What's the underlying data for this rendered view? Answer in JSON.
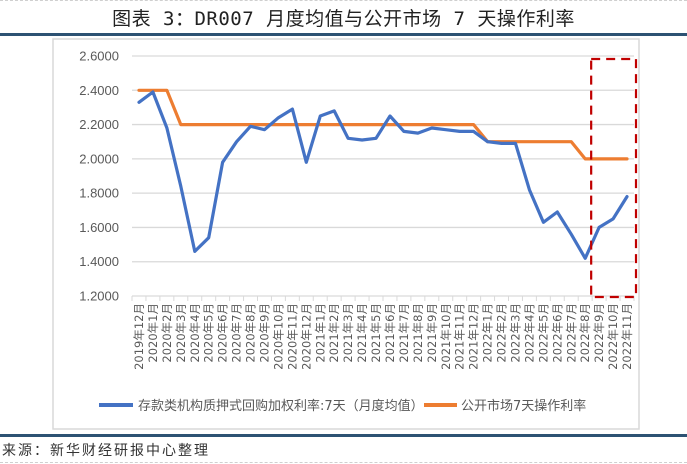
{
  "header": {
    "title": "图表 3：DR007 月度均值与公开市场 7 天操作利率"
  },
  "footer": {
    "source": "来源：新华财经研报中心整理"
  },
  "colors": {
    "series_dr007": "#4472c4",
    "series_omo": "#ed7d31",
    "highlight_box": "#c00000",
    "grid": "#d9d9d9",
    "rule": "#2d5273",
    "axis_text": "#595959"
  },
  "chart_data": {
    "type": "line",
    "title": "DR007 月度均值与公开市场 7 天操作利率",
    "xlabel": "",
    "ylabel": "",
    "ylim": [
      1.2,
      2.6
    ],
    "yticks": [
      "1.2000",
      "1.4000",
      "1.6000",
      "1.8000",
      "2.0000",
      "2.2000",
      "2.4000",
      "2.6000"
    ],
    "grid": true,
    "legend_position": "bottom",
    "categories": [
      "2019年12月",
      "2020年1月",
      "2020年2月",
      "2020年3月",
      "2020年4月",
      "2020年5月",
      "2020年6月",
      "2020年7月",
      "2020年8月",
      "2020年9月",
      "2020年10月",
      "2020年11月",
      "2020年12月",
      "2021年1月",
      "2021年2月",
      "2021年3月",
      "2021年4月",
      "2021年5月",
      "2021年6月",
      "2021年7月",
      "2021年8月",
      "2021年9月",
      "2021年10月",
      "2021年11月",
      "2021年12月",
      "2022年1月",
      "2022年2月",
      "2022年3月",
      "2022年4月",
      "2022年5月",
      "2022年6月",
      "2022年7月",
      "2022年8月",
      "2022年9月",
      "2022年10月",
      "2022年11月"
    ],
    "series": [
      {
        "name": "存款类机构质押式回购加权利率:7天（月度均值）",
        "color": "#4472c4",
        "values": [
          2.33,
          2.39,
          2.18,
          1.84,
          1.46,
          1.54,
          1.98,
          2.1,
          2.19,
          2.17,
          2.24,
          2.29,
          1.98,
          2.25,
          2.28,
          2.12,
          2.11,
          2.12,
          2.25,
          2.16,
          2.15,
          2.18,
          2.17,
          2.16,
          2.16,
          2.1,
          2.09,
          2.09,
          1.82,
          1.63,
          1.69,
          1.56,
          1.42,
          1.6,
          1.65,
          1.78
        ]
      },
      {
        "name": "公开市场7天操作利率",
        "color": "#ed7d31",
        "values": [
          2.4,
          2.4,
          2.4,
          2.2,
          2.2,
          2.2,
          2.2,
          2.2,
          2.2,
          2.2,
          2.2,
          2.2,
          2.2,
          2.2,
          2.2,
          2.2,
          2.2,
          2.2,
          2.2,
          2.2,
          2.2,
          2.2,
          2.2,
          2.2,
          2.2,
          2.1,
          2.1,
          2.1,
          2.1,
          2.1,
          2.1,
          2.1,
          2.0,
          2.0,
          2.0,
          2.0
        ]
      }
    ],
    "annotations": [
      {
        "type": "dashed-box",
        "from_category": "2022年9月",
        "to_category": "2022年11月",
        "color": "#c00000"
      }
    ]
  }
}
